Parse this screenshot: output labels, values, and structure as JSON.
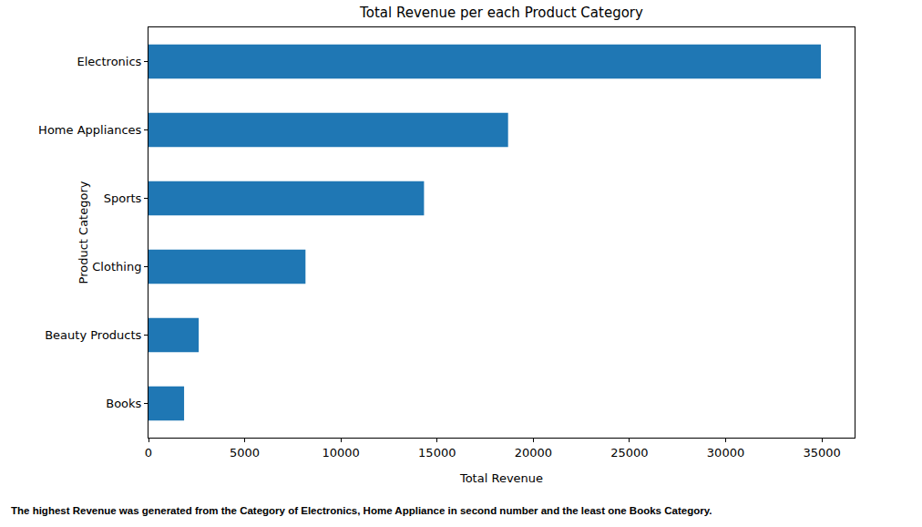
{
  "chart_data": {
    "type": "bar",
    "orientation": "horizontal",
    "title": "Total Revenue per each Product Category",
    "x_label": "Total Revenue",
    "y_label": "Product Category",
    "categories": [
      "Electronics",
      "Home Appliances",
      "Sports",
      "Clothing",
      "Beauty Products",
      "Books"
    ],
    "values": [
      34950,
      18690,
      14320,
      8160,
      2610,
      1850
    ],
    "color": "#1f77b4",
    "xlim": [
      0,
      36700
    ],
    "xticks": [
      0,
      5000,
      10000,
      15000,
      20000,
      25000,
      30000,
      35000
    ],
    "grid": false,
    "annotations": [
      "The highest Revenue was generated from the Category of Electronics, Home Appliance in second number and the least one Books Category."
    ]
  }
}
